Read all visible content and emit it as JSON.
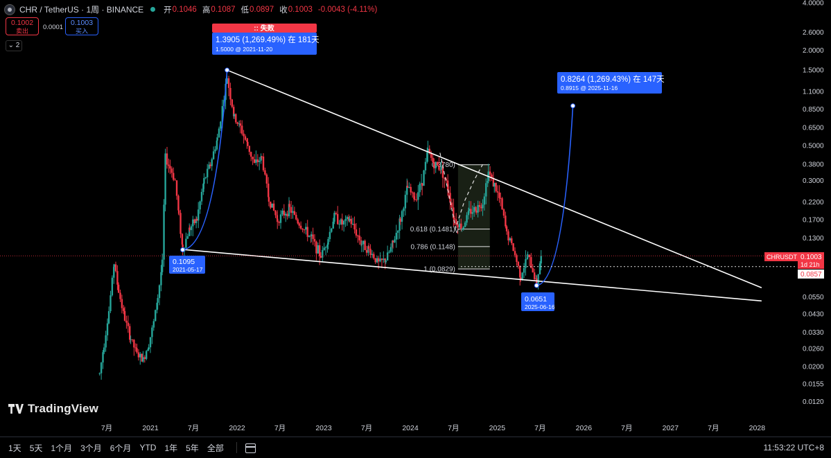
{
  "header": {
    "symbol": "CHR / TetherUS · 1周 · BINANCE",
    "ohlc": [
      {
        "label": "开",
        "value": "0.1046"
      },
      {
        "label": "高",
        "value": "0.1087"
      },
      {
        "label": "低",
        "value": "0.0897"
      },
      {
        "label": "收",
        "value": "0.1003"
      }
    ],
    "change": "-0.0043 (-4.11%)",
    "sell_price": "0.1002",
    "sell_label": "卖出",
    "spread": "0.0001",
    "buy_price": "0.1003",
    "buy_label": "买入",
    "indicator_count": "2"
  },
  "colors": {
    "up": "#26a69a",
    "down": "#f23645",
    "trendline": "#ffffff",
    "projection": "#2962ff",
    "label_bg": "#2962ff",
    "fail_bg": "#f23645"
  },
  "chart_data": {
    "type": "candlestick",
    "scale": "log",
    "ylim": [
      0.0108,
      4.0
    ],
    "y_ticks": [
      "4.0000",
      "2.6000",
      "2.0000",
      "1.5000",
      "1.1000",
      "0.8500",
      "0.6500",
      "0.5000",
      "0.3800",
      "0.3000",
      "0.2200",
      "0.1700",
      "0.1300",
      "0.1000",
      "0.0750",
      "0.0550",
      "0.0430",
      "0.0330",
      "0.0260",
      "0.0200",
      "0.0155",
      "0.0120"
    ],
    "y_tick_values": [
      4.0,
      2.6,
      2.0,
      1.5,
      1.1,
      0.85,
      0.65,
      0.5,
      0.38,
      0.3,
      0.22,
      0.17,
      0.13,
      0.1,
      0.075,
      0.055,
      0.043,
      0.033,
      0.026,
      0.02,
      0.0155,
      0.012
    ],
    "x_ticks": [
      {
        "label": "7月",
        "date": "2020-07-01"
      },
      {
        "label": "2021",
        "date": "2021-01-01"
      },
      {
        "label": "7月",
        "date": "2021-07-01"
      },
      {
        "label": "2022",
        "date": "2022-01-01"
      },
      {
        "label": "7月",
        "date": "2022-07-01"
      },
      {
        "label": "2023",
        "date": "2023-01-01"
      },
      {
        "label": "7月",
        "date": "2023-07-01"
      },
      {
        "label": "2024",
        "date": "2024-01-01"
      },
      {
        "label": "7月",
        "date": "2024-07-01"
      },
      {
        "label": "2025",
        "date": "2025-01-01"
      },
      {
        "label": "7月",
        "date": "2025-07-01"
      },
      {
        "label": "2026",
        "date": "2026-01-01"
      },
      {
        "label": "7月",
        "date": "2026-07-01"
      },
      {
        "label": "2027",
        "date": "2027-01-01"
      },
      {
        "label": "7月",
        "date": "2027-07-01"
      },
      {
        "label": "2028",
        "date": "2028-01-01"
      }
    ],
    "price_path": [
      [
        "2020-06-01",
        0.018
      ],
      [
        "2020-06-20",
        0.028
      ],
      [
        "2020-07-10",
        0.045
      ],
      [
        "2020-08-01",
        0.09
      ],
      [
        "2020-08-20",
        0.06
      ],
      [
        "2020-09-15",
        0.04
      ],
      [
        "2020-10-10",
        0.03
      ],
      [
        "2020-11-05",
        0.024
      ],
      [
        "2020-12-01",
        0.022
      ],
      [
        "2020-12-25",
        0.028
      ],
      [
        "2021-01-15",
        0.038
      ],
      [
        "2021-02-01",
        0.055
      ],
      [
        "2021-02-20",
        0.09
      ],
      [
        "2021-03-05",
        0.42
      ],
      [
        "2021-03-25",
        0.36
      ],
      [
        "2021-04-15",
        0.3
      ],
      [
        "2021-05-01",
        0.18
      ],
      [
        "2021-05-17",
        0.11
      ],
      [
        "2021-06-15",
        0.15
      ],
      [
        "2021-07-15",
        0.17
      ],
      [
        "2021-08-15",
        0.3
      ],
      [
        "2021-09-10",
        0.38
      ],
      [
        "2021-10-10",
        0.55
      ],
      [
        "2021-11-20",
        1.35
      ],
      [
        "2021-12-20",
        0.75
      ],
      [
        "2022-01-15",
        0.65
      ],
      [
        "2022-02-15",
        0.5
      ],
      [
        "2022-03-15",
        0.38
      ],
      [
        "2022-04-15",
        0.42
      ],
      [
        "2022-05-15",
        0.23
      ],
      [
        "2022-06-20",
        0.17
      ],
      [
        "2022-08-10",
        0.2
      ],
      [
        "2022-09-20",
        0.16
      ],
      [
        "2022-11-10",
        0.13
      ],
      [
        "2022-12-20",
        0.1
      ],
      [
        "2023-01-20",
        0.13
      ],
      [
        "2023-02-15",
        0.18
      ],
      [
        "2023-03-20",
        0.16
      ],
      [
        "2023-04-20",
        0.17
      ],
      [
        "2023-06-10",
        0.12
      ],
      [
        "2023-07-10",
        0.11
      ],
      [
        "2023-08-20",
        0.09
      ],
      [
        "2023-09-20",
        0.095
      ],
      [
        "2023-10-20",
        0.12
      ],
      [
        "2023-11-20",
        0.17
      ],
      [
        "2023-12-20",
        0.27
      ],
      [
        "2024-01-20",
        0.23
      ],
      [
        "2024-02-20",
        0.3
      ],
      [
        "2024-03-15",
        0.46
      ],
      [
        "2024-04-10",
        0.38
      ],
      [
        "2024-05-10",
        0.36
      ],
      [
        "2024-06-10",
        0.26
      ],
      [
        "2024-07-05",
        0.17
      ],
      [
        "2024-08-05",
        0.15
      ],
      [
        "2024-09-05",
        0.19
      ],
      [
        "2024-10-05",
        0.2
      ],
      [
        "2024-11-01",
        0.22
      ],
      [
        "2024-11-25",
        0.34
      ],
      [
        "2024-12-20",
        0.28
      ],
      [
        "2025-01-15",
        0.22
      ],
      [
        "2025-02-10",
        0.14
      ],
      [
        "2025-03-10",
        0.11
      ],
      [
        "2025-04-10",
        0.075
      ],
      [
        "2025-05-10",
        0.1
      ],
      [
        "2025-06-16",
        0.068
      ],
      [
        "2025-07-05",
        0.1003
      ]
    ],
    "trendlines": [
      {
        "name": "upper-trendline",
        "from": [
          "2021-11-20",
          1.5
        ],
        "to": [
          "2028-01-20",
          0.063
        ]
      },
      {
        "name": "lower-trendline",
        "from": [
          "2021-05-17",
          0.11
        ],
        "to": [
          "2028-01-20",
          0.052
        ]
      }
    ],
    "projections": [
      {
        "from": [
          "2021-05-17",
          0.1095
        ],
        "to": [
          "2021-11-20",
          1.5
        ]
      },
      {
        "from": [
          "2025-06-16",
          0.0651
        ],
        "to": [
          "2025-11-16",
          0.8915
        ]
      }
    ],
    "fib": {
      "range_start": "2024-07-20",
      "range_end": "2024-12-01",
      "levels": [
        {
          "label": "0.3780)",
          "value": 0.378
        },
        {
          "label": "0.618 (0.1481)",
          "value": 0.1481
        },
        {
          "label": "0.786 (0.1148)",
          "value": 0.1148
        },
        {
          "label": "1 (0.0829)",
          "value": 0.0829
        }
      ]
    },
    "annotations": {
      "fail_label": ":: 失败",
      "top_move": "1.3905 (1,269.49%) 在 181天",
      "top_move_sub": "1.5000 @ 2021-11-20",
      "low1_price": "0.1095",
      "low1_date": "2021-05-17",
      "low2_price": "0.0651",
      "low2_date": "2025-06-16",
      "target_move": "0.8264 (1,269.43%) 在 147天",
      "target_sub": "0.8915 @ 2025-11-16",
      "v_mark": "v"
    },
    "price_tags": {
      "symbol": "CHRUSDT",
      "last": "0.1003",
      "last_value": 0.1003,
      "countdown": "1d 21h",
      "marker": "0.0857",
      "marker_value": 0.0857
    }
  },
  "bottombar": {
    "ranges": [
      "1天",
      "5天",
      "1个月",
      "3个月",
      "6个月",
      "YTD",
      "1年",
      "5年",
      "全部"
    ],
    "clock": "11:53:22 UTC+8"
  },
  "logo_text": "TradingView"
}
